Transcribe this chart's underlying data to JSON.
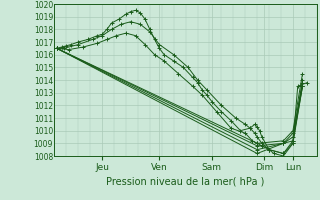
{
  "xlabel": "Pression niveau de la mer( hPa )",
  "bg_color": "#cce8d8",
  "grid_color": "#aacab8",
  "line_color": "#1a5c1a",
  "ylim": [
    1008,
    1020
  ],
  "yticks": [
    1008,
    1009,
    1010,
    1011,
    1012,
    1013,
    1014,
    1015,
    1016,
    1017,
    1018,
    1019,
    1020
  ],
  "xlim": [
    0,
    5.5
  ],
  "day_labels": [
    "Jeu",
    "Ven",
    "Sam",
    "Dim",
    "Lun"
  ],
  "day_positions": [
    1.0,
    2.2,
    3.3,
    4.4,
    5.0
  ],
  "lines": [
    {
      "x": [
        0.05,
        0.15,
        0.25,
        0.35,
        0.5,
        0.7,
        0.9,
        1.0,
        1.1,
        1.2,
        1.35,
        1.5,
        1.6,
        1.7,
        1.8,
        1.9,
        2.0,
        2.1,
        2.2,
        2.3,
        2.5,
        2.7,
        2.9,
        3.0,
        3.1,
        3.2,
        3.3,
        3.5,
        3.7,
        3.9,
        4.1,
        4.2,
        4.25,
        4.3,
        4.35,
        4.5,
        4.6,
        4.8,
        5.0,
        5.1,
        5.3
      ],
      "y": [
        1016.5,
        1016.6,
        1016.7,
        1016.8,
        1017.0,
        1017.2,
        1017.5,
        1017.6,
        1018.0,
        1018.5,
        1018.8,
        1019.2,
        1019.4,
        1019.5,
        1019.3,
        1018.8,
        1018.0,
        1017.2,
        1016.5,
        1016.0,
        1015.5,
        1015.0,
        1014.2,
        1013.8,
        1013.2,
        1012.8,
        1012.3,
        1011.5,
        1010.8,
        1010.0,
        1010.2,
        1010.5,
        1010.3,
        1010.0,
        1009.5,
        1008.5,
        1008.2,
        1008.0,
        1009.0,
        1013.5,
        1013.8
      ],
      "marker": "+"
    },
    {
      "x": [
        0.05,
        0.2,
        0.5,
        0.8,
        1.0,
        1.2,
        1.4,
        1.6,
        1.8,
        2.0,
        2.2,
        2.5,
        2.8,
        3.0,
        3.2,
        3.5,
        3.8,
        4.0,
        4.1,
        4.2,
        4.25,
        4.35,
        4.5,
        4.8,
        5.0,
        5.2
      ],
      "y": [
        1016.5,
        1016.5,
        1016.8,
        1017.2,
        1017.5,
        1018.0,
        1018.4,
        1018.6,
        1018.4,
        1017.8,
        1016.8,
        1016.0,
        1015.0,
        1014.0,
        1013.2,
        1012.0,
        1011.0,
        1010.5,
        1010.2,
        1009.8,
        1009.5,
        1009.0,
        1008.5,
        1008.2,
        1009.0,
        1013.5
      ],
      "marker": "+"
    },
    {
      "x": [
        0.05,
        0.3,
        0.6,
        0.9,
        1.1,
        1.3,
        1.5,
        1.7,
        1.9,
        2.1,
        2.3,
        2.6,
        2.9,
        3.1,
        3.4,
        3.7,
        4.0,
        4.15,
        4.25,
        4.35,
        4.5,
        4.8,
        5.0,
        5.2
      ],
      "y": [
        1016.5,
        1016.4,
        1016.6,
        1016.9,
        1017.2,
        1017.5,
        1017.7,
        1017.5,
        1016.8,
        1016.0,
        1015.5,
        1014.5,
        1013.5,
        1012.8,
        1011.5,
        1010.2,
        1009.8,
        1009.2,
        1009.0,
        1008.8,
        1008.5,
        1008.2,
        1009.2,
        1013.5
      ],
      "marker": "+"
    },
    {
      "x": [
        0.05,
        4.25,
        4.8,
        5.0,
        5.2
      ],
      "y": [
        1016.5,
        1008.2,
        1009.0,
        1009.2,
        1014.0
      ],
      "marker": "+"
    },
    {
      "x": [
        0.05,
        4.25,
        4.8,
        5.0,
        5.2
      ],
      "y": [
        1016.5,
        1008.5,
        1009.0,
        1009.5,
        1013.8
      ],
      "marker": "+"
    },
    {
      "x": [
        0.05,
        4.25,
        4.8,
        5.0,
        5.2
      ],
      "y": [
        1016.5,
        1008.8,
        1009.0,
        1009.8,
        1013.5
      ],
      "marker": "+"
    },
    {
      "x": [
        0.05,
        4.25,
        4.8,
        5.0,
        5.2
      ],
      "y": [
        1016.5,
        1009.0,
        1009.2,
        1010.0,
        1014.5
      ],
      "marker": "+"
    }
  ]
}
